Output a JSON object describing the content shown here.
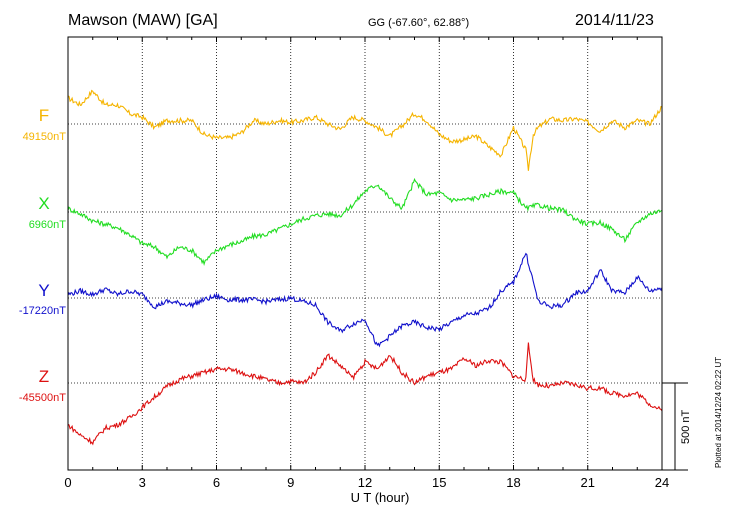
{
  "header": {
    "title": "Mawson (MAW)  [GA]",
    "coords": "GG (-67.60°,  62.88°)",
    "date": "2014/11/23"
  },
  "footer": {
    "plotted": "Plotted at 2014/12/24 02:22 UT"
  },
  "chart_data": {
    "type": "line",
    "title": "Mawson (MAW)  [GA]",
    "xlabel": "U T (hour)",
    "ylabel": "",
    "xlim": [
      0,
      24
    ],
    "x_ticks": [
      "0",
      "3",
      "6",
      "9",
      "12",
      "15",
      "18",
      "21",
      "24"
    ],
    "grid": true,
    "scale_bar": {
      "value": 500,
      "unit": "nT",
      "label": "500 nT"
    },
    "series": [
      {
        "name": "F",
        "baseline": 49150,
        "baseline_label": "49150nT",
        "color": "#f5b400",
        "x": [
          0,
          0.5,
          1,
          1.5,
          2,
          2.5,
          3,
          3.5,
          4,
          4.5,
          5,
          5.5,
          6,
          6.5,
          7,
          7.5,
          8,
          8.5,
          9,
          9.5,
          10,
          10.5,
          11,
          11.5,
          12,
          12.5,
          13,
          13.5,
          14,
          14.5,
          15,
          15.5,
          16,
          16.5,
          17,
          17.5,
          18,
          18.5,
          18.6,
          18.8,
          19,
          19.5,
          20,
          20.5,
          21,
          21.5,
          22,
          22.5,
          23,
          23.5,
          24
        ],
        "values": [
          150,
          110,
          190,
          110,
          110,
          60,
          40,
          -20,
          20,
          20,
          20,
          -60,
          -80,
          -80,
          -50,
          20,
          0,
          20,
          10,
          20,
          40,
          0,
          -30,
          40,
          20,
          -20,
          -70,
          -10,
          60,
          20,
          -60,
          -100,
          -90,
          -70,
          -130,
          -180,
          -20,
          -150,
          -260,
          -60,
          -20,
          30,
          20,
          30,
          10,
          -40,
          20,
          -20,
          20,
          0,
          100
        ]
      },
      {
        "name": "X",
        "baseline": 6960,
        "baseline_label": "6960nT",
        "color": "#22dd22",
        "x": [
          0,
          0.5,
          1,
          1.5,
          2,
          2.5,
          3,
          3.5,
          4,
          4.5,
          5,
          5.5,
          6,
          6.5,
          7,
          7.5,
          8,
          8.5,
          9,
          9.5,
          10,
          10.5,
          11,
          11.5,
          12,
          12.5,
          13,
          13.5,
          14,
          14.5,
          15,
          15.5,
          16,
          16.5,
          17,
          17.5,
          18,
          18.5,
          19,
          19.5,
          20,
          20.5,
          21,
          21.5,
          22,
          22.5,
          23,
          23.5,
          24
        ],
        "values": [
          20,
          -10,
          -50,
          -70,
          -90,
          -130,
          -180,
          -200,
          -260,
          -200,
          -220,
          -290,
          -220,
          -190,
          -170,
          -140,
          -130,
          -100,
          -70,
          -40,
          -20,
          -10,
          -20,
          40,
          120,
          160,
          80,
          20,
          180,
          100,
          110,
          70,
          70,
          80,
          100,
          120,
          110,
          20,
          40,
          20,
          10,
          -40,
          -70,
          -60,
          -100,
          -160,
          -60,
          -10,
          10
        ]
      },
      {
        "name": "Y",
        "baseline": -17220,
        "baseline_label": "-17220nT",
        "color": "#1111cc",
        "x": [
          0,
          0.5,
          1,
          1.5,
          2,
          2.5,
          3,
          3.5,
          4,
          4.5,
          5,
          5.5,
          6,
          6.5,
          7,
          7.5,
          8,
          8.5,
          9,
          9.5,
          10,
          10.5,
          11,
          11.5,
          12,
          12.5,
          13,
          13.5,
          14,
          14.5,
          15,
          15.5,
          16,
          16.5,
          17,
          17.5,
          18,
          18.5,
          19,
          19.5,
          20,
          20.5,
          21,
          21.5,
          22,
          22.5,
          23,
          23.5,
          24
        ],
        "values": [
          20,
          40,
          20,
          50,
          20,
          40,
          20,
          -50,
          -20,
          -30,
          -40,
          -10,
          10,
          -10,
          -10,
          -10,
          -20,
          -10,
          0,
          -20,
          -40,
          -140,
          -190,
          -150,
          -120,
          -280,
          -220,
          -160,
          -140,
          -170,
          -180,
          -140,
          -100,
          -90,
          -60,
          40,
          90,
          260,
          -20,
          -50,
          -40,
          30,
          40,
          160,
          40,
          30,
          120,
          40,
          60
        ]
      },
      {
        "name": "Z",
        "baseline": -45500,
        "baseline_label": "-45500nT",
        "color": "#dd1111",
        "x": [
          0,
          0.5,
          1,
          1.5,
          2,
          2.5,
          3,
          3.5,
          4,
          4.5,
          5,
          5.5,
          6,
          6.5,
          7,
          7.5,
          8,
          8.5,
          9,
          9.5,
          10,
          10.5,
          11,
          11.5,
          12,
          12.5,
          13,
          13.5,
          14,
          14.5,
          15,
          15.5,
          16,
          16.5,
          17,
          17.5,
          18,
          18.5,
          18.6,
          18.8,
          19,
          19.5,
          20,
          20.5,
          21,
          21.5,
          22,
          22.5,
          23,
          23.5,
          24
        ],
        "values": [
          -240,
          -300,
          -340,
          -260,
          -240,
          -200,
          -140,
          -80,
          -20,
          20,
          40,
          60,
          80,
          80,
          60,
          40,
          20,
          0,
          10,
          0,
          60,
          160,
          100,
          30,
          120,
          80,
          160,
          60,
          0,
          40,
          60,
          80,
          140,
          100,
          130,
          120,
          40,
          20,
          220,
          20,
          -10,
          -20,
          0,
          -10,
          -30,
          -30,
          -60,
          -70,
          -60,
          -120,
          -160
        ]
      }
    ]
  }
}
